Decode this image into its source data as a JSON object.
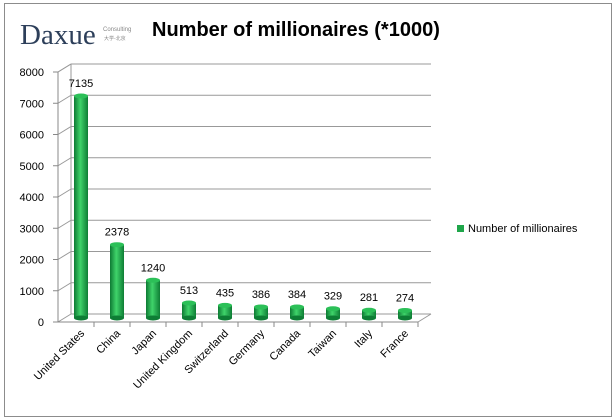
{
  "logo": {
    "name": "Daxue",
    "sub1": "Consulting",
    "sub2": "大学-北京"
  },
  "chart_data": {
    "type": "bar",
    "title": "Number of millionaires (*1000)",
    "xlabel": "",
    "ylabel": "",
    "ylim": [
      0,
      8000
    ],
    "yticks": [
      0,
      1000,
      2000,
      3000,
      4000,
      5000,
      6000,
      7000,
      8000
    ],
    "grid": true,
    "legend_position": "right",
    "categories": [
      "United States",
      "China",
      "Japan",
      "United Kingdom",
      "Switzerland",
      "Germany",
      "Canada",
      "Taiwan",
      "Italy",
      "France"
    ],
    "series": [
      {
        "name": "Number of  millionaires",
        "color": "#1fa64a",
        "values": [
          7135,
          2378,
          1240,
          513,
          435,
          386,
          384,
          329,
          281,
          274
        ]
      }
    ]
  }
}
